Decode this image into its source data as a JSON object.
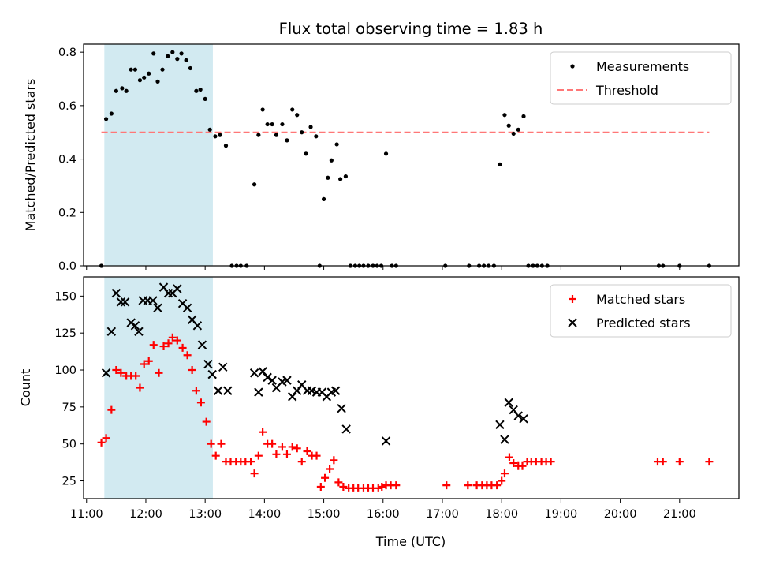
{
  "figure": {
    "title": "Flux total observing time = 1.83 h",
    "xlabel": "Time (UTC)"
  },
  "chart_data": [
    {
      "type": "scatter",
      "ylabel": "Matched/Predicted stars",
      "xlim": [
        10.95,
        22.0
      ],
      "ylim": [
        0,
        0.83
      ],
      "x_ticks": [
        "11:00",
        "12:00",
        "13:00",
        "14:00",
        "15:00",
        "16:00",
        "17:00",
        "18:00",
        "19:00",
        "20:00",
        "21:00"
      ],
      "y_ticks": [
        "0.0",
        "0.2",
        "0.4",
        "0.6",
        "0.8"
      ],
      "shaded_span": {
        "x": [
          11.3,
          13.13
        ],
        "color": "#add8e6"
      },
      "threshold": {
        "name": "Threshold",
        "y": 0.5,
        "x": [
          11.25,
          21.5
        ],
        "color": "#ff7777"
      },
      "legend": {
        "position": "upper right",
        "entries": [
          "Measurements",
          "Threshold"
        ]
      },
      "series": [
        {
          "name": "Measurements",
          "color": "#000000",
          "marker": "dot",
          "points": [
            [
              11.25,
              0.0
            ],
            [
              11.33,
              0.55
            ],
            [
              11.42,
              0.57
            ],
            [
              11.5,
              0.655
            ],
            [
              11.6,
              0.665
            ],
            [
              11.67,
              0.655
            ],
            [
              11.75,
              0.735
            ],
            [
              11.82,
              0.735
            ],
            [
              11.9,
              0.695
            ],
            [
              11.97,
              0.705
            ],
            [
              12.05,
              0.72
            ],
            [
              12.13,
              0.795
            ],
            [
              12.2,
              0.69
            ],
            [
              12.28,
              0.735
            ],
            [
              12.37,
              0.785
            ],
            [
              12.45,
              0.8
            ],
            [
              12.53,
              0.775
            ],
            [
              12.6,
              0.795
            ],
            [
              12.68,
              0.77
            ],
            [
              12.75,
              0.74
            ],
            [
              12.85,
              0.655
            ],
            [
              12.92,
              0.66
            ],
            [
              13.0,
              0.625
            ],
            [
              13.08,
              0.51
            ],
            [
              13.17,
              0.485
            ],
            [
              13.25,
              0.49
            ],
            [
              13.35,
              0.45
            ],
            [
              13.45,
              0.0
            ],
            [
              13.53,
              0.0
            ],
            [
              13.6,
              0.0
            ],
            [
              13.7,
              0.0
            ],
            [
              13.83,
              0.305
            ],
            [
              13.9,
              0.49
            ],
            [
              13.97,
              0.585
            ],
            [
              14.05,
              0.53
            ],
            [
              14.13,
              0.53
            ],
            [
              14.2,
              0.49
            ],
            [
              14.3,
              0.53
            ],
            [
              14.38,
              0.47
            ],
            [
              14.47,
              0.585
            ],
            [
              14.55,
              0.565
            ],
            [
              14.63,
              0.5
            ],
            [
              14.7,
              0.42
            ],
            [
              14.78,
              0.52
            ],
            [
              14.87,
              0.485
            ],
            [
              14.93,
              0.0
            ],
            [
              15.0,
              0.25
            ],
            [
              15.07,
              0.33
            ],
            [
              15.13,
              0.395
            ],
            [
              15.22,
              0.455
            ],
            [
              15.28,
              0.325
            ],
            [
              15.37,
              0.335
            ],
            [
              15.45,
              0.0
            ],
            [
              15.53,
              0.0
            ],
            [
              15.6,
              0.0
            ],
            [
              15.67,
              0.0
            ],
            [
              15.75,
              0.0
            ],
            [
              15.83,
              0.0
            ],
            [
              15.9,
              0.0
            ],
            [
              15.97,
              0.0
            ],
            [
              16.05,
              0.42
            ],
            [
              16.15,
              0.0
            ],
            [
              16.22,
              0.0
            ],
            [
              17.05,
              0.0
            ],
            [
              17.45,
              0.0
            ],
            [
              17.62,
              0.0
            ],
            [
              17.7,
              0.0
            ],
            [
              17.78,
              0.0
            ],
            [
              17.87,
              0.0
            ],
            [
              17.97,
              0.38
            ],
            [
              18.05,
              0.565
            ],
            [
              18.12,
              0.525
            ],
            [
              18.2,
              0.495
            ],
            [
              18.28,
              0.51
            ],
            [
              18.37,
              0.56
            ],
            [
              18.45,
              0.0
            ],
            [
              18.53,
              0.0
            ],
            [
              18.6,
              0.0
            ],
            [
              18.68,
              0.0
            ],
            [
              18.77,
              0.0
            ],
            [
              20.65,
              0.0
            ],
            [
              20.72,
              0.0
            ],
            [
              21.0,
              0.0
            ],
            [
              21.5,
              0.0
            ]
          ]
        }
      ]
    },
    {
      "type": "scatter",
      "ylabel": "Count",
      "xlim": [
        10.95,
        22.0
      ],
      "ylim": [
        13,
        163
      ],
      "x_ticks": [
        "11:00",
        "12:00",
        "13:00",
        "14:00",
        "15:00",
        "16:00",
        "17:00",
        "18:00",
        "19:00",
        "20:00",
        "21:00"
      ],
      "y_ticks": [
        "25",
        "50",
        "75",
        "100",
        "125",
        "150"
      ],
      "shaded_span": {
        "x": [
          11.3,
          13.13
        ],
        "color": "#add8e6"
      },
      "legend": {
        "position": "upper right",
        "entries": [
          "Matched stars",
          "Predicted stars"
        ]
      },
      "series": [
        {
          "name": "Matched stars",
          "color": "#ff0000",
          "marker": "plus",
          "points": [
            [
              11.25,
              51
            ],
            [
              11.33,
              54
            ],
            [
              11.42,
              73
            ],
            [
              11.5,
              100
            ],
            [
              11.58,
              98
            ],
            [
              11.67,
              96
            ],
            [
              11.75,
              96
            ],
            [
              11.83,
              96
            ],
            [
              11.9,
              88
            ],
            [
              11.97,
              104
            ],
            [
              12.05,
              106
            ],
            [
              12.13,
              117
            ],
            [
              12.22,
              98
            ],
            [
              12.3,
              116
            ],
            [
              12.38,
              118
            ],
            [
              12.45,
              122
            ],
            [
              12.53,
              120
            ],
            [
              12.62,
              115
            ],
            [
              12.7,
              110
            ],
            [
              12.78,
              100
            ],
            [
              12.85,
              86
            ],
            [
              12.93,
              78
            ],
            [
              13.02,
              65
            ],
            [
              13.1,
              50
            ],
            [
              13.18,
              42
            ],
            [
              13.27,
              50
            ],
            [
              13.35,
              38
            ],
            [
              13.43,
              38
            ],
            [
              13.52,
              38
            ],
            [
              13.6,
              38
            ],
            [
              13.68,
              38
            ],
            [
              13.77,
              38
            ],
            [
              13.83,
              30
            ],
            [
              13.9,
              42
            ],
            [
              13.97,
              58
            ],
            [
              14.05,
              50
            ],
            [
              14.13,
              50
            ],
            [
              14.2,
              43
            ],
            [
              14.3,
              48
            ],
            [
              14.38,
              43
            ],
            [
              14.47,
              48
            ],
            [
              14.55,
              47
            ],
            [
              14.63,
              38
            ],
            [
              14.72,
              45
            ],
            [
              14.8,
              42
            ],
            [
              14.88,
              42
            ],
            [
              14.95,
              21
            ],
            [
              15.02,
              27
            ],
            [
              15.1,
              33
            ],
            [
              15.17,
              39
            ],
            [
              15.25,
              24
            ],
            [
              15.33,
              21
            ],
            [
              15.42,
              20
            ],
            [
              15.5,
              20
            ],
            [
              15.58,
              20
            ],
            [
              15.67,
              20
            ],
            [
              15.75,
              20
            ],
            [
              15.83,
              20
            ],
            [
              15.92,
              20
            ],
            [
              15.98,
              21
            ],
            [
              16.05,
              22
            ],
            [
              16.13,
              22
            ],
            [
              16.22,
              22
            ],
            [
              17.07,
              22
            ],
            [
              17.43,
              22
            ],
            [
              17.58,
              22
            ],
            [
              17.67,
              22
            ],
            [
              17.75,
              22
            ],
            [
              17.83,
              22
            ],
            [
              17.92,
              22
            ],
            [
              18.0,
              25
            ],
            [
              18.05,
              30
            ],
            [
              18.13,
              41
            ],
            [
              18.2,
              37
            ],
            [
              18.28,
              35
            ],
            [
              18.35,
              35
            ],
            [
              18.43,
              38
            ],
            [
              18.5,
              38
            ],
            [
              18.58,
              38
            ],
            [
              18.67,
              38
            ],
            [
              18.75,
              38
            ],
            [
              18.83,
              38
            ],
            [
              20.63,
              38
            ],
            [
              20.72,
              38
            ],
            [
              21.0,
              38
            ],
            [
              21.5,
              38
            ]
          ]
        },
        {
          "name": "Predicted stars",
          "color": "#000000",
          "marker": "x",
          "points": [
            [
              11.33,
              98
            ],
            [
              11.42,
              126
            ],
            [
              11.5,
              152
            ],
            [
              11.58,
              146
            ],
            [
              11.65,
              146
            ],
            [
              11.75,
              132
            ],
            [
              11.82,
              130
            ],
            [
              11.88,
              126
            ],
            [
              11.95,
              147
            ],
            [
              12.03,
              147
            ],
            [
              12.12,
              147
            ],
            [
              12.2,
              142
            ],
            [
              12.3,
              156
            ],
            [
              12.38,
              152
            ],
            [
              12.45,
              152
            ],
            [
              12.53,
              155
            ],
            [
              12.62,
              145
            ],
            [
              12.7,
              142
            ],
            [
              12.78,
              134
            ],
            [
              12.87,
              130
            ],
            [
              12.95,
              117
            ],
            [
              13.05,
              104
            ],
            [
              13.12,
              97
            ],
            [
              13.22,
              86
            ],
            [
              13.3,
              102
            ],
            [
              13.38,
              86
            ],
            [
              13.83,
              98
            ],
            [
              13.9,
              85
            ],
            [
              13.97,
              99
            ],
            [
              14.05,
              95
            ],
            [
              14.13,
              93
            ],
            [
              14.2,
              88
            ],
            [
              14.3,
              92
            ],
            [
              14.38,
              93
            ],
            [
              14.47,
              82
            ],
            [
              14.55,
              86
            ],
            [
              14.63,
              90
            ],
            [
              14.72,
              86
            ],
            [
              14.8,
              86
            ],
            [
              14.88,
              85
            ],
            [
              14.97,
              85
            ],
            [
              15.05,
              82
            ],
            [
              15.13,
              85
            ],
            [
              15.2,
              86
            ],
            [
              15.3,
              74
            ],
            [
              15.38,
              60
            ],
            [
              16.05,
              52
            ],
            [
              17.97,
              63
            ],
            [
              18.05,
              53
            ],
            [
              18.12,
              78
            ],
            [
              18.2,
              73
            ],
            [
              18.28,
              69
            ],
            [
              18.37,
              67
            ]
          ]
        }
      ]
    }
  ]
}
